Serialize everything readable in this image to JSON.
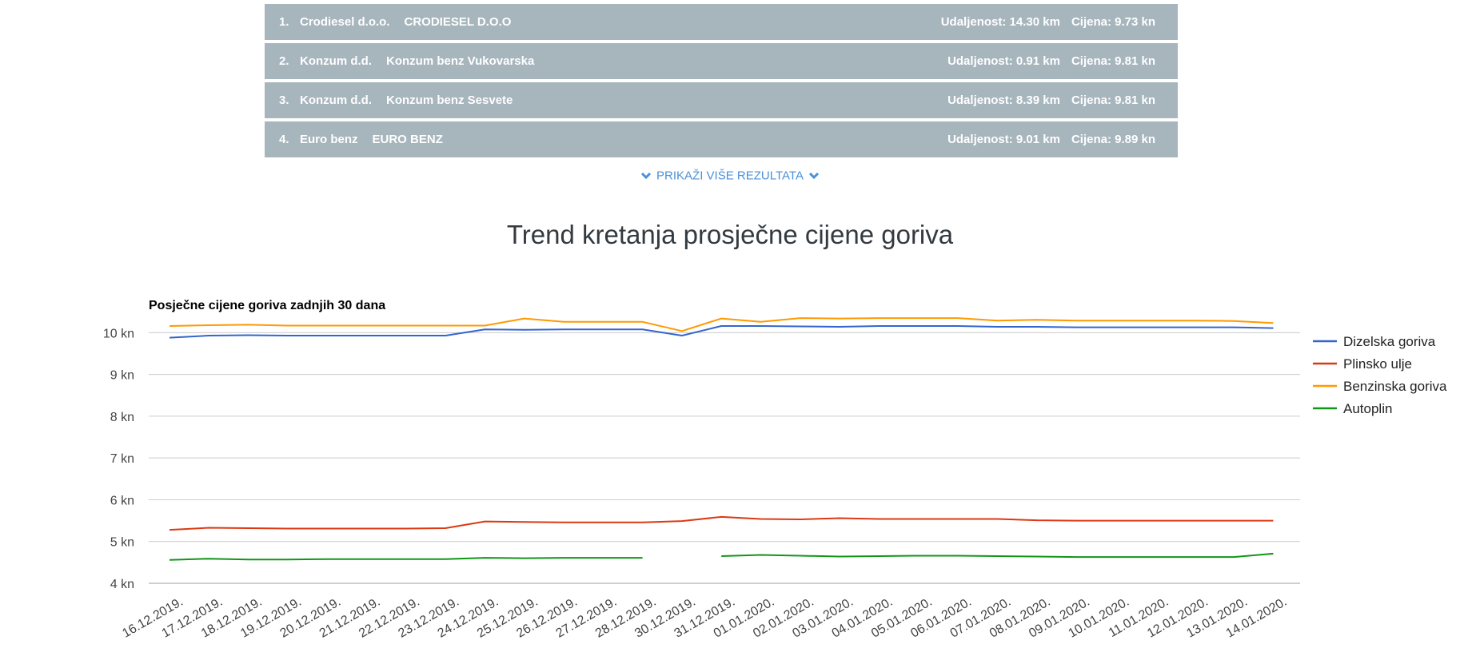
{
  "results": [
    {
      "rank": "1.",
      "company": "Crodiesel d.o.o.",
      "station": "CRODIESEL D.O.O",
      "distance": "Udaljenost: 14.30 km",
      "price": "Cijena: 9.73 kn"
    },
    {
      "rank": "2.",
      "company": "Konzum d.d.",
      "station": "Konzum benz Vukovarska",
      "distance": "Udaljenost: 0.91 km",
      "price": "Cijena: 9.81 kn"
    },
    {
      "rank": "3.",
      "company": "Konzum d.d.",
      "station": "Konzum benz Sesvete",
      "distance": "Udaljenost: 8.39 km",
      "price": "Cijena: 9.81 kn"
    },
    {
      "rank": "4.",
      "company": "Euro benz",
      "station": "EURO BENZ",
      "distance": "Udaljenost: 9.01 km",
      "price": "Cijena: 9.89 kn"
    }
  ],
  "show_more": {
    "label": "PRIKAŽI VIŠE REZULTATA",
    "icon": "chevron-down-icon",
    "color": "#4a90d9"
  },
  "section_title": "Trend kretanja prosječne cijene goriva",
  "colors": {
    "row_bg": "#a7b5bd",
    "row_text": "#ffffff"
  },
  "chart_data": {
    "type": "line",
    "title": "Posječne cijene goriva zadnjih 30 dana",
    "xlabel": "",
    "ylabel": "",
    "ylim": [
      4,
      10.6
    ],
    "yticks": [
      "4 kn",
      "5 kn",
      "6 kn",
      "7 kn",
      "8 kn",
      "9 kn",
      "10 kn"
    ],
    "ytick_values": [
      4,
      5,
      6,
      7,
      8,
      9,
      10
    ],
    "grid": true,
    "legend_position": "right",
    "categories": [
      "16.12.2019.",
      "17.12.2019.",
      "18.12.2019.",
      "19.12.2019.",
      "20.12.2019.",
      "21.12.2019.",
      "22.12.2019.",
      "23.12.2019.",
      "24.12.2019.",
      "25.12.2019.",
      "26.12.2019.",
      "27.12.2019.",
      "28.12.2019.",
      "30.12.2019.",
      "31.12.2019.",
      "01.01.2020.",
      "02.01.2020.",
      "03.01.2020.",
      "04.01.2020.",
      "05.01.2020.",
      "06.01.2020.",
      "07.01.2020.",
      "08.01.2020.",
      "09.01.2020.",
      "10.01.2020.",
      "11.01.2020.",
      "12.01.2020.",
      "13.01.2020.",
      "14.01.2020."
    ],
    "series": [
      {
        "name": "Dizelska goriva",
        "color": "#3366cc",
        "values": [
          9.88,
          9.93,
          9.94,
          9.93,
          9.93,
          9.93,
          9.93,
          9.93,
          10.08,
          10.07,
          10.08,
          10.08,
          10.08,
          9.93,
          10.16,
          10.16,
          10.15,
          10.14,
          10.16,
          10.16,
          10.16,
          10.14,
          10.14,
          10.13,
          10.13,
          10.13,
          10.13,
          10.13,
          10.11
        ]
      },
      {
        "name": "Plinsko ulje",
        "color": "#dc3912",
        "values": [
          5.28,
          5.33,
          5.32,
          5.31,
          5.31,
          5.31,
          5.31,
          5.32,
          5.48,
          5.47,
          5.46,
          5.46,
          5.46,
          5.49,
          5.59,
          5.54,
          5.53,
          5.56,
          5.54,
          5.54,
          5.54,
          5.54,
          5.51,
          5.5,
          5.5,
          5.5,
          5.5,
          5.5,
          5.5
        ]
      },
      {
        "name": "Benzinska goriva",
        "color": "#ff9900",
        "values": [
          10.16,
          10.18,
          10.19,
          10.17,
          10.17,
          10.17,
          10.17,
          10.17,
          10.17,
          10.34,
          10.26,
          10.26,
          10.26,
          10.04,
          10.34,
          10.26,
          10.35,
          10.34,
          10.35,
          10.35,
          10.35,
          10.29,
          10.31,
          10.29,
          10.29,
          10.29,
          10.29,
          10.28,
          10.23
        ]
      },
      {
        "name": "Autoplin",
        "color": "#109618",
        "values": [
          4.56,
          4.59,
          4.57,
          4.57,
          4.58,
          4.58,
          4.58,
          4.58,
          4.61,
          4.6,
          4.61,
          4.61,
          4.61,
          null,
          4.65,
          4.68,
          4.66,
          4.64,
          4.65,
          4.66,
          4.66,
          4.65,
          4.64,
          4.63,
          4.63,
          4.63,
          4.63,
          4.63,
          4.71
        ]
      }
    ]
  }
}
